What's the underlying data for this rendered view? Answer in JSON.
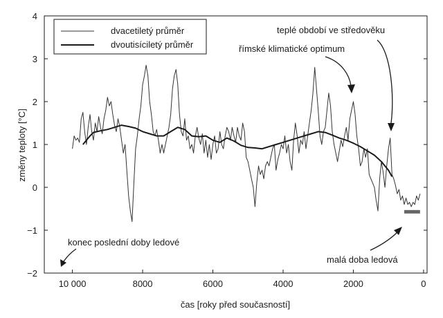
{
  "chart_data": {
    "type": "line",
    "xlabel": "čas [roky před současností]",
    "ylabel": "změny teploty [°C]",
    "xlim": [
      10800,
      -100
    ],
    "ylim": [
      -2,
      4
    ],
    "xticks": [
      10000,
      8000,
      6000,
      4000,
      2000,
      0
    ],
    "xtick_labels": [
      "10 000",
      "8000",
      "6000",
      "4000",
      "2000",
      "0"
    ],
    "yticks": [
      -2,
      -1,
      0,
      1,
      2,
      3,
      4
    ],
    "ytick_labels": [
      "−2",
      "−1",
      "0",
      "1",
      "2",
      "3",
      "4"
    ],
    "legend": {
      "position": "top-left",
      "entries": [
        "dvacetiletý průměr",
        "dvoutisíciletý průměr"
      ]
    },
    "series": [
      {
        "name": "dvacetiletý průměr",
        "style": "thin",
        "color": "#333333",
        "x": [
          10000,
          9950,
          9900,
          9850,
          9800,
          9750,
          9700,
          9650,
          9600,
          9550,
          9500,
          9450,
          9400,
          9350,
          9300,
          9250,
          9200,
          9150,
          9100,
          9050,
          9000,
          8950,
          8900,
          8850,
          8800,
          8750,
          8700,
          8650,
          8600,
          8550,
          8500,
          8450,
          8400,
          8350,
          8300,
          8250,
          8200,
          8150,
          8100,
          8050,
          8000,
          7950,
          7900,
          7850,
          7800,
          7750,
          7700,
          7650,
          7600,
          7550,
          7500,
          7450,
          7400,
          7350,
          7300,
          7250,
          7200,
          7150,
          7100,
          7050,
          7000,
          6950,
          6900,
          6850,
          6800,
          6750,
          6700,
          6650,
          6600,
          6550,
          6500,
          6450,
          6400,
          6350,
          6300,
          6250,
          6200,
          6150,
          6100,
          6050,
          6000,
          5950,
          5900,
          5850,
          5800,
          5750,
          5700,
          5650,
          5600,
          5550,
          5500,
          5450,
          5400,
          5350,
          5300,
          5250,
          5200,
          5150,
          5100,
          5050,
          5000,
          4950,
          4900,
          4850,
          4800,
          4750,
          4700,
          4650,
          4600,
          4550,
          4500,
          4450,
          4400,
          4350,
          4300,
          4250,
          4200,
          4150,
          4100,
          4050,
          4000,
          3950,
          3900,
          3850,
          3800,
          3750,
          3700,
          3650,
          3600,
          3550,
          3500,
          3450,
          3400,
          3350,
          3300,
          3250,
          3200,
          3150,
          3100,
          3050,
          3000,
          2950,
          2900,
          2850,
          2800,
          2750,
          2700,
          2650,
          2600,
          2550,
          2500,
          2450,
          2400,
          2350,
          2300,
          2250,
          2200,
          2150,
          2100,
          2050,
          2000,
          1950,
          1900,
          1850,
          1800,
          1750,
          1700,
          1650,
          1600,
          1550,
          1500,
          1450,
          1400,
          1350,
          1300,
          1250,
          1200,
          1150,
          1100,
          1050,
          1000,
          950,
          900,
          850,
          800,
          750,
          700,
          650,
          600,
          550,
          500,
          450,
          400,
          350,
          300,
          250,
          200,
          150,
          100
        ],
        "values": [
          0.9,
          1.2,
          1.1,
          1.15,
          1.05,
          1.6,
          1.75,
          1.3,
          1.0,
          1.4,
          1.7,
          1.3,
          1.1,
          1.5,
          1.3,
          1.65,
          1.4,
          1.25,
          1.6,
          1.8,
          2.1,
          1.9,
          2.0,
          1.7,
          1.45,
          1.3,
          1.6,
          1.4,
          1.1,
          0.8,
          1.0,
          0.4,
          -0.2,
          -0.55,
          -0.8,
          0.1,
          0.9,
          1.2,
          1.6,
          1.9,
          2.4,
          2.6,
          2.85,
          2.6,
          2.0,
          1.7,
          1.3,
          1.2,
          1.35,
          1.1,
          0.8,
          1.0,
          0.8,
          1.0,
          1.2,
          1.4,
          1.7,
          2.3,
          2.6,
          2.75,
          2.4,
          1.7,
          1.3,
          1.2,
          1.6,
          1.1,
          1.2,
          0.9,
          1.0,
          0.8,
          1.2,
          1.4,
          1.15,
          1.0,
          1.25,
          0.8,
          1.1,
          0.7,
          1.0,
          0.65,
          1.0,
          1.2,
          0.8,
          0.9,
          1.3,
          1.0,
          0.9,
          1.2,
          1.4,
          1.3,
          1.1,
          1.4,
          1.2,
          1.05,
          1.4,
          1.2,
          1.1,
          1.5,
          1.3,
          0.7,
          0.6,
          0.4,
          0.2,
          0.0,
          -0.45,
          0.1,
          0.5,
          0.3,
          0.4,
          0.2,
          0.5,
          0.6,
          0.5,
          0.7,
          0.9,
          1.0,
          0.4,
          0.65,
          0.8,
          1.0,
          0.9,
          1.2,
          0.8,
          1.0,
          0.6,
          0.4,
          1.1,
          1.5,
          1.2,
          0.8,
          1.1,
          1.0,
          1.3,
          0.9,
          1.2,
          1.5,
          1.8,
          2.2,
          2.8,
          2.3,
          1.8,
          1.2,
          1.0,
          1.3,
          1.4,
          1.8,
          2.2,
          1.9,
          1.3,
          1.0,
          0.8,
          0.6,
          0.85,
          1.1,
          0.95,
          1.2,
          1.4,
          1.1,
          1.6,
          1.8,
          2.0,
          1.7,
          1.2,
          0.9,
          0.5,
          0.6,
          0.9,
          0.7,
          0.9,
          0.3,
          0.2,
          0.1,
          0.0,
          -0.3,
          -0.55,
          0.2,
          0.6,
          0.35,
          0.0,
          0.5,
          0.9,
          1.15,
          0.3,
          0.2,
          0.05,
          -0.15,
          -0.05,
          -0.3,
          -0.2,
          -0.4,
          -0.25,
          -0.4,
          -0.35,
          -0.45,
          -0.35,
          -0.4,
          -0.2,
          -0.3,
          -0.15
        ]
      },
      {
        "name": "dvoutisíciletý průměr",
        "style": "thick",
        "color": "#1a1a1a",
        "x": [
          9700,
          9600,
          9500,
          9400,
          9300,
          9200,
          9000,
          8800,
          8600,
          8400,
          8200,
          8000,
          7800,
          7600,
          7400,
          7200,
          7000,
          6800,
          6600,
          6400,
          6200,
          6000,
          5800,
          5600,
          5400,
          5200,
          5000,
          4800,
          4600,
          4400,
          4200,
          4000,
          3800,
          3600,
          3400,
          3200,
          3000,
          2800,
          2600,
          2400,
          2200,
          2000,
          1800,
          1600,
          1400,
          1200,
          1000,
          900
        ],
        "values": [
          1.0,
          1.1,
          1.2,
          1.28,
          1.3,
          1.32,
          1.35,
          1.4,
          1.45,
          1.42,
          1.38,
          1.3,
          1.25,
          1.2,
          1.2,
          1.3,
          1.4,
          1.35,
          1.2,
          1.18,
          1.2,
          1.1,
          1.05,
          1.15,
          1.08,
          0.98,
          0.93,
          0.92,
          0.9,
          0.95,
          1.0,
          1.05,
          1.1,
          1.15,
          1.2,
          1.25,
          1.3,
          1.28,
          1.22,
          1.15,
          1.1,
          1.03,
          0.95,
          0.85,
          0.75,
          0.6,
          0.4,
          0.25
        ]
      }
    ],
    "annotations": [
      {
        "text": "teplé období ve středověku",
        "x": 900,
        "y": 1.15
      },
      {
        "text": "římské klimatické optimum",
        "x": 2050,
        "y": 2.1
      },
      {
        "text": "konec poslední doby ledové",
        "x": 10800,
        "y": -1.85
      },
      {
        "text": "malá doba ledová",
        "x": 550,
        "y": -0.5
      }
    ],
    "bar_marker": {
      "label": "malá doba ledová",
      "x_from": 550,
      "x_to": 100,
      "y": -0.57
    }
  }
}
